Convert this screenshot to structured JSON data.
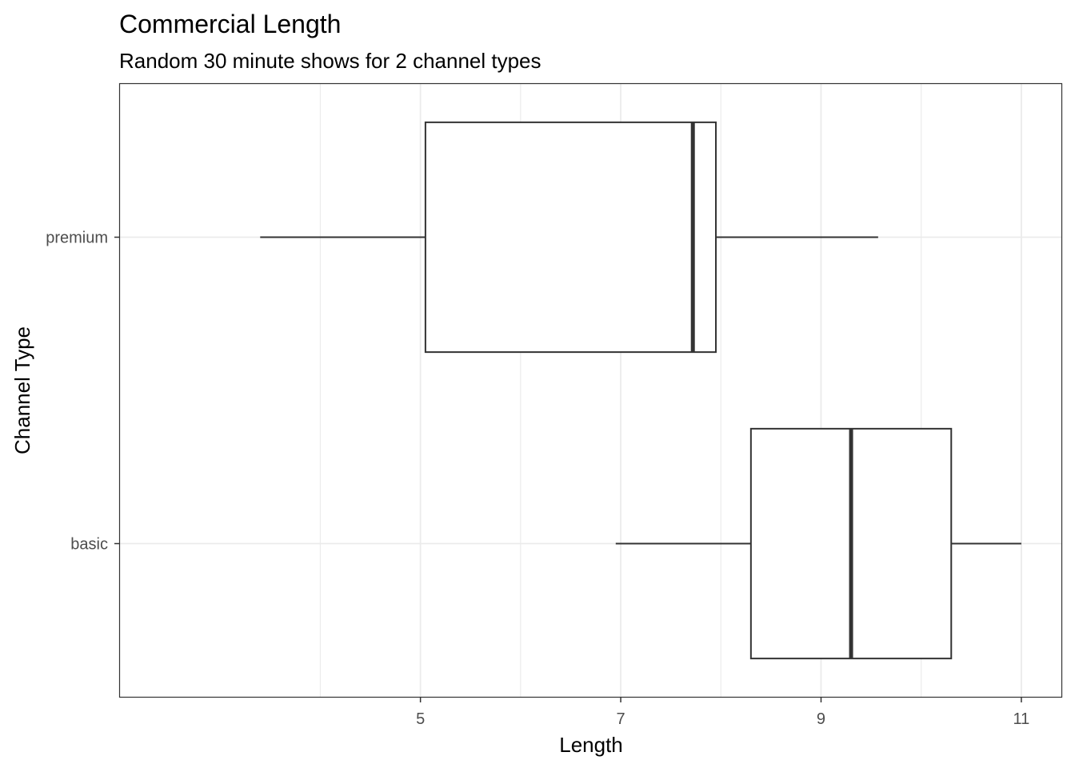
{
  "chart_data": {
    "type": "boxplot",
    "orientation": "horizontal",
    "title": "Commercial Length",
    "subtitle": "Random 30 minute shows for 2 channel types",
    "xlabel": "Length",
    "ylabel": "Channel Type",
    "xlim": [
      2.0,
      11.4
    ],
    "xticks": [
      5,
      7,
      9,
      11
    ],
    "grid": true,
    "categories": [
      "premium",
      "basic"
    ],
    "boxes": [
      {
        "category": "premium",
        "min": 3.4,
        "q1": 5.05,
        "median": 7.72,
        "q3": 7.95,
        "max": 9.57
      },
      {
        "category": "basic",
        "min": 6.95,
        "q1": 8.3,
        "median": 9.3,
        "q3": 10.3,
        "max": 11.0
      }
    ],
    "colors": {
      "box_line": "#333333",
      "box_fill": "#ffffff",
      "grid": "#ebebeb",
      "panel_border": "#333333"
    }
  }
}
